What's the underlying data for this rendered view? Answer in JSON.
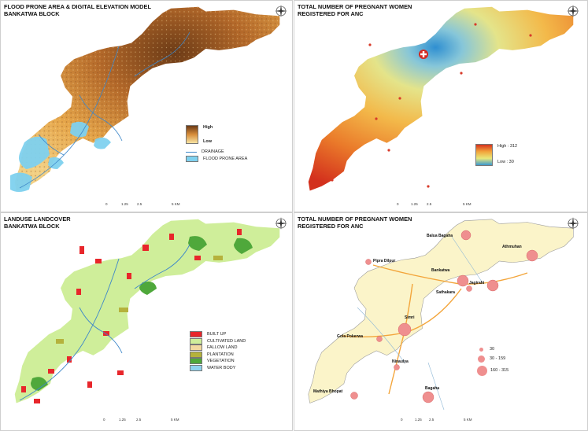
{
  "panels": {
    "p1": {
      "title_line1": "FLOOD PRONE AREA & DIGITAL ELEVATION MODEL",
      "title_line2": "BANKATWA BLOCK",
      "legend_high": "High",
      "legend_low": "Low",
      "legend_drainage": "DRAINAGE",
      "legend_flood": "FLOOD PRONE AREA"
    },
    "p2": {
      "title_line1": "TOTAL NUMBER OF PREGNANT WOMEN",
      "title_line2": "REGISTERED FOR ANC",
      "legend_high": "High : 312",
      "legend_low": "Low : 30"
    },
    "p3": {
      "title_line1": "LANDUSE LANDCOVER",
      "title_line2": "BANKATWA BLOCK",
      "legend": [
        {
          "label": "BUILT UP",
          "color": "#e8262b"
        },
        {
          "label": "CULTIVATED LAND",
          "color": "#cfee9a"
        },
        {
          "label": "FALLOW LAND",
          "color": "#f2d9a0"
        },
        {
          "label": "PLANTATION",
          "color": "#b5b23c"
        },
        {
          "label": "VEGETATION",
          "color": "#4fa83b"
        },
        {
          "label": "WATER BODY",
          "color": "#8fd3ee"
        }
      ]
    },
    "p4": {
      "title_line1": "TOTAL NUMBER OF PREGNANT WOMEN",
      "title_line2": "REGISTERED FOR ANC",
      "legend": [
        "30",
        "30 - 159",
        "160 - 315"
      ],
      "places": [
        "Balua Bagaha",
        "Athmuhan",
        "Pipra Dilpur",
        "Bankatwa",
        "Jagirahi",
        "Sathakara",
        "Simri",
        "Gola Pokerwa",
        "Ninaulya",
        "Bagaha",
        "Mathiya Bhopat"
      ]
    }
  },
  "scale": {
    "t0": "0",
    "t1": "1.25",
    "t2": "2.5",
    "t3": "5 KM"
  },
  "colors": {
    "dem_high": "#6b3a16",
    "dem_low": "#f7e4a3",
    "flood": "#7fd1ef",
    "cultivated": "#cfee9a",
    "anc_high": "#d8321f",
    "anc_low": "#3b9ad0",
    "bubble": "#ef8f8f"
  },
  "icons": {
    "compass": "compass-rose-icon",
    "hospital": "hospital-cross-icon"
  }
}
